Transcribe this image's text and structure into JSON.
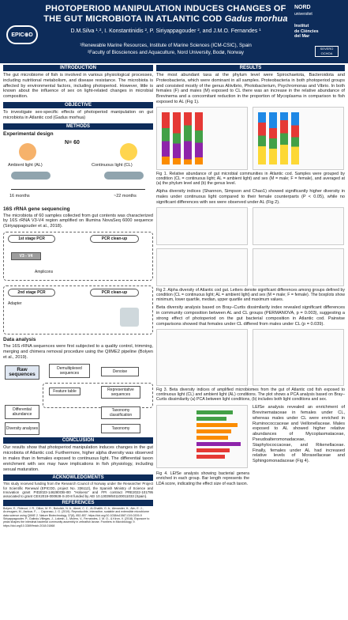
{
  "header": {
    "title_line1": "PHOTOPERIOD MANIPULATION INDUCES CHANGES OF",
    "title_line2_plain": "THE GUT MICROBIOTA IN ATLANTIC COD ",
    "title_line2_italic": "Gadus morhua",
    "authors": "D.M.Silva ¹˒², I. Konstantinidis ², P. Siriyappagouder ², and J.M.O. Fernandes ¹",
    "aff1": "¹Renewable Marine Resources, Institute of Marine Sciences (ICM-CSIC), Spain",
    "aff2": "²Faculty of Biosciences and Aquaculture, Nord University, Bodø, Norway",
    "logo_left": "EPIC⊕D",
    "nord": "NORD",
    "nord2": "universitet",
    "icm1": "Institut",
    "icm2": "de Ciències",
    "icm3": "del Mar",
    "sea": "SEVERO OCHOA"
  },
  "intro": {
    "heading": "INTRODUCTION",
    "text": "The gut microbiome of fish is involved in various physiological processes, including nutritional metabolism, and disease resistance. The microbiota is affected by environmental factors, including photoperiod. However, little is known about the influence of sex on light-related changes in microbial composition."
  },
  "objective": {
    "heading": "OBJECTIVE",
    "text": "To investigate sex-specific effects of photoperiod manipulation on gut microbiota in Atlantic cod (Gadus morhua)"
  },
  "methods": {
    "heading": "METHODS",
    "exp_title": "Experimental design",
    "n": "N= 60",
    "al": "Ambient light (AL)",
    "cl": "Continuous light (CL)",
    "m16": "16 months",
    "m22": "~22 months",
    "seq_title": "16S rRNA gene sequencing",
    "seq_text": "The microbiota of 60 samples collected from gut contents was characterized by 16S rRNA V3-V4 region amplified on Illumina NovaSeq 6000 sequence (Siriyappagouder et al., 2018).",
    "pcr1": "1st stage PCR",
    "clean1": "PCR clean-up",
    "v3v4": "V3 - V4",
    "amplicons": "Amplicons",
    "pcr2": "2nd stage PCR",
    "clean2": "PCR clean-up",
    "adapter": "Adapter",
    "da_title": "Data analysis",
    "da_text": "The 16S rRNA sequences were first subjected to a quality control, trimming, merging and chimera removal procedure using the QIIME2 pipeline (Bolyen et al., 2019).",
    "raw": "Raw sequences",
    "demux": "Demultiplexed sequences",
    "denoise": "Denoise",
    "feature": "Feature table",
    "rep": "Representative sequences",
    "diffab": "Differential abundance",
    "tax": "Taxonomy classification",
    "div": "Diversity analyses",
    "taxo": "Taxonomy"
  },
  "conclusion": {
    "heading": "CONCLUSION",
    "text": "Our results show that photoperiod manipulation induces changes in the gut microbiota of Atlantic cod. Furthermore, higher alpha diversity was observed in males than in females exposed to continuous light. The differential taxon enrichment with sex may have implications in fish physiology, including sexual maturation."
  },
  "ack": {
    "heading": "ACKNOWLEDGMENTS",
    "text": "This study received funding from the Research Council of Norway under the Researcher Project for Scientific Renewal (EPICOD, project No. 336112), the Spanish Ministry of Science and Innovation grant PID2023-146280OB-I00 \"Holoesx\" and FPI contract PRE2022-101795 associated to grant CEX2019-000928-S-20-8 funded by AEI 10.13039/501100011033 (Spain)."
  },
  "refs": {
    "heading": "REFERENCES",
    "r1": "Bolyen, E., Rideout, J. R., Dillon, M. R., Bokulich, N. A., Abnet, C. C., Al-Ghalith, G. A., Alexander, H., Alm, E. J., Arumugam, M., Asnicar, F., ... Caporaso, J. G. (2019). Reproducible, interactive, scalable and extensible microbiome data science using QIIME 2. Nature Biotechnology, 37(8), 852-857. https://doi.org/10.1038/s41587-019-0209-9",
    "r2": "Siriyappagouder, P., Galindo-Villegas, J., Lokesh, J., Mulero, V., Fernandes, J. M. O., & Kiron, V. (2018). Exposure to yeast shapes the intestinal bacterial community assembly in zebrafish larvae. Frontiers in Microbiology, 9. https://doi.org/10.3389/fmicb.2018.01868"
  },
  "results": {
    "heading": "RESULTS",
    "text1": "The most abundant taxa at the phylum level were Spirochaetota, Bacteroidota and Proteobacteria, which were dominant in all samples. Proteobacteria in both photoperiod groups and consisted mostly of the genus Aliivibrio, Photobacterium, Psychromonas and Vibrio. In both females (F) and males (M) exposed to CL there was an increase in the relative abundance of Brevinema and a concomitant reduction in the proportion of Mycoplasma in comparison to fish exposed to AL (Fig 1).",
    "fig1": "Fig 1. Relative abundance of gut microbial communities in Atlantic cod. Samples were grouped by condition (CL = continuous light; AL = ambient light) and sex (M = male; F = female), and averaged at (a) the phylum level and (b) the genus level.",
    "text2": "Alpha diversity indices (Shannon, Simpson and Chao1) showed significantly higher diversity in males under continuous light compared to their female counterparts (P < 0.05), while no significant differences with sex were observed under AL (Fig 2).",
    "fig2": "Fig 2. Alpha diversity of Atlantic cod gut. Letters denote significant differences among groups defined by condition (CL = continuous light; AL = ambient light) and sex (M = male; F = female). The boxplots show minimum, lower quartile, median, upper quartile and maximum values.",
    "text3": "Beta diversity analysis based on Bray–Curtis dissimilarity index revealed significant differences in community composition between AL and CL groups (PERMANOVA, p = 0.003), suggesting a strong effect of photoperiod on the gut bacterial composition in Atlantic cod. Pairwise comparisons showed that females under CL differed from males under CL (p = 0.039).",
    "fig3": "Fig 3. Beta diversity indices of amplified microbiomes from the gut of Atlantic cod fish exposed to continuous light (CL) and ambient light (AL) conditions. The plot shows a PCA analysis based on Bray–Curtis dissimilarity (a) PCA between light conditions, (b) includes both light conditions and sex.",
    "text4": "LEfSe analysis revealed an enrichment of Brevinemataceae in females under CL, whereas males under CL were enriched in Ruminococcaceae and Veillonellaceae. Males exposed to AL showed higher relative abundances of Mycoplasmataceae, Pseudoalteromonadaceae, Staphylococcaceae, and Rikenellaceae. Finally, females under AL had increased relative levels of Moraxellaceae and Sphingomonadaceae (Fig 4).",
    "fig4": "Fig 4. LEfSe analysis showing bacterial genera enriched in each group. Bar length represents the LDA score, indicating the effect size of each taxon."
  },
  "colors": {
    "navy": "#0d2c5a",
    "spiro": "#e53935",
    "bact": "#43a047",
    "proteo": "#8e24aa",
    "other": "#fb8c00"
  }
}
